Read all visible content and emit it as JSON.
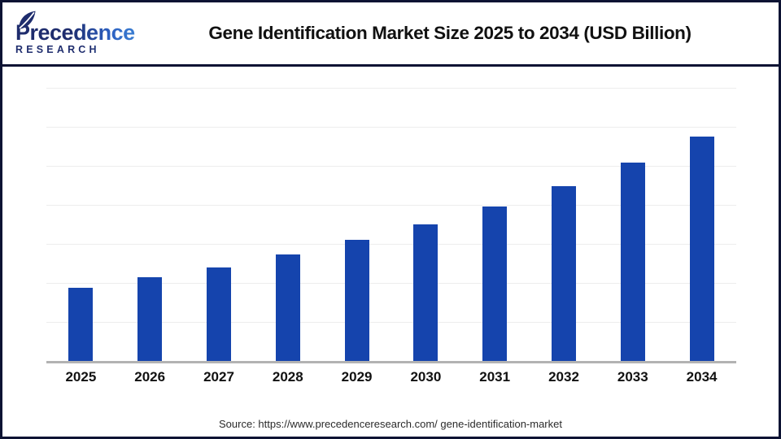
{
  "header": {
    "logo": {
      "line1": "Precedence",
      "line2": "RESEARCH",
      "navy": "#1e2c6d",
      "blue": "#3f8ad9"
    },
    "title": "Gene Identification Market Size 2025 to 2034 (USD Billion)"
  },
  "chart_data": {
    "type": "bar",
    "title": "Gene Identification Market Size 2025 to 2034 (USD Billion)",
    "categories": [
      "2025",
      "2026",
      "2027",
      "2028",
      "2029",
      "2030",
      "2031",
      "2032",
      "2033",
      "2034"
    ],
    "values": [
      1.87,
      2.14,
      2.39,
      2.73,
      3.09,
      3.5,
      3.96,
      4.48,
      5.07,
      5.75
    ],
    "value_note": "y-axis unlabeled; values estimated in gridline units from bar heights",
    "xlabel": "",
    "ylabel": "",
    "ylim": [
      0,
      7
    ],
    "gridlines": 7,
    "grid": "horizontal",
    "legend": "none",
    "bar_color": "#1544ad"
  },
  "footer": {
    "source": "Source: https://www.precedenceresearch.com/ gene-identification-market"
  }
}
